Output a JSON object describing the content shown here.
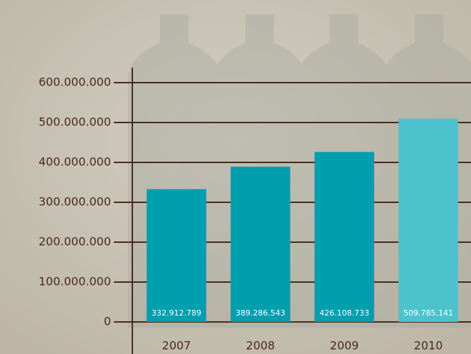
{
  "chart_data": {
    "type": "bar",
    "categories": [
      "2007",
      "2008",
      "2009",
      "2010"
    ],
    "values": [
      332912789,
      389286543,
      426108733,
      509785141
    ],
    "value_labels": [
      "332.912.789",
      "389.286.543",
      "426.108.733",
      "509.785.141"
    ],
    "colors": [
      "#009fae",
      "#009fae",
      "#009fae",
      "#4cc2cd"
    ],
    "ylim": [
      0,
      600000000
    ],
    "yticks": [
      0,
      {
        "value": 100000000,
        "label": "100.000.000"
      },
      {
        "value": 200000000,
        "label": "200.000.000"
      },
      {
        "value": 300000000,
        "label": "300.000.000"
      },
      {
        "value": 400000000,
        "label": "400.000.000"
      },
      {
        "value": 500000000,
        "label": "500.000.000"
      },
      {
        "value": 600000000,
        "label": "600.000.000"
      }
    ],
    "grid": true
  }
}
